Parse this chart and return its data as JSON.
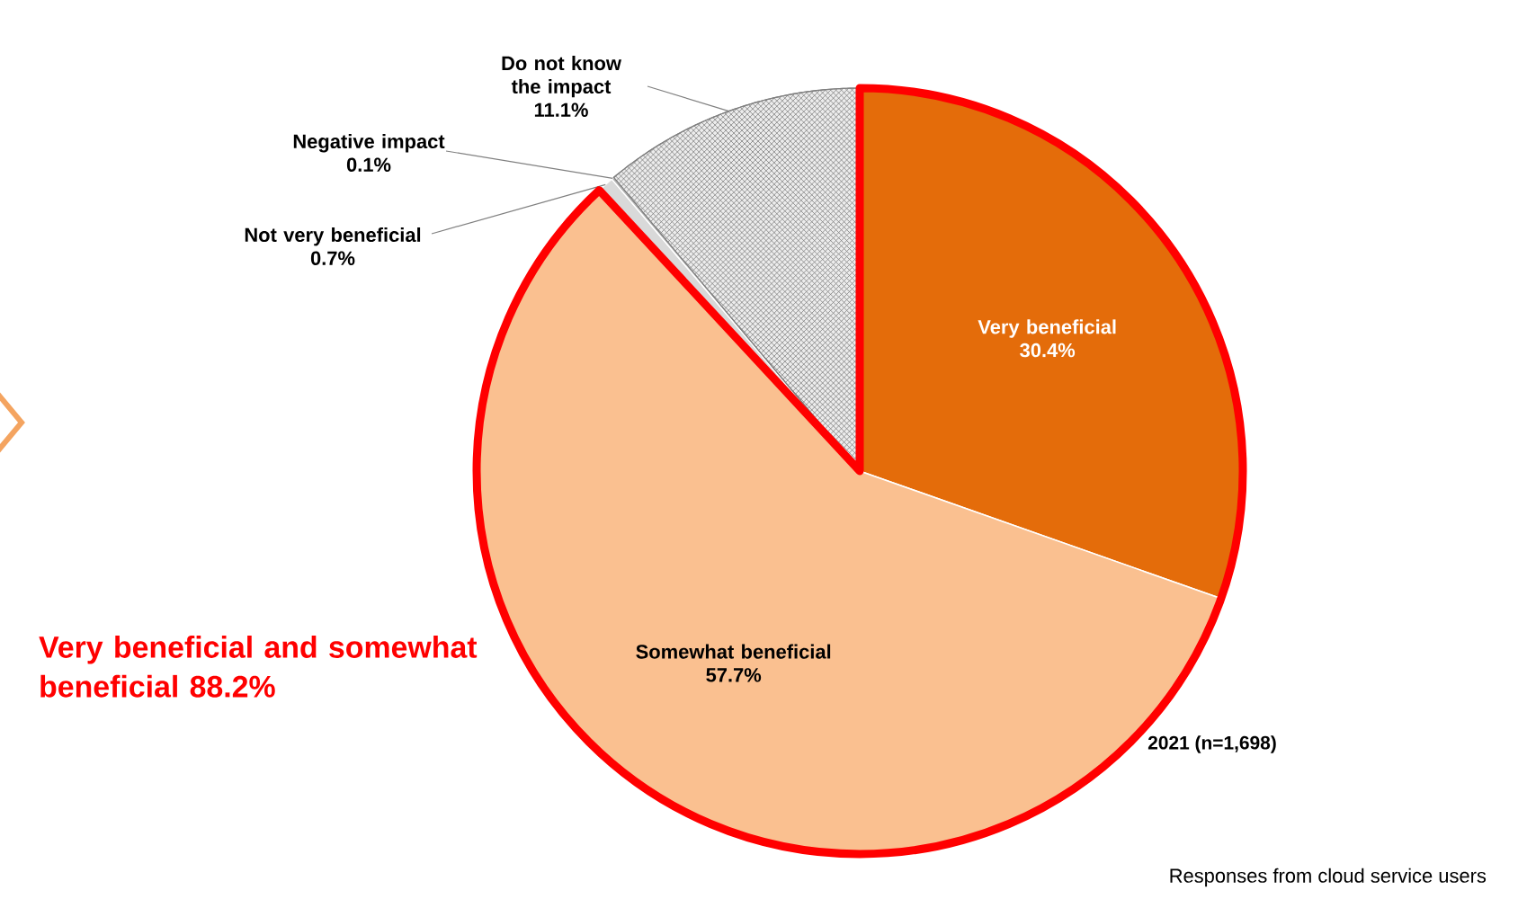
{
  "chart_data": {
    "type": "pie",
    "categories": [
      "Very beneficial",
      "Somewhat beneficial",
      "Not very beneficial",
      "Negative impact",
      "Do not know the impact"
    ],
    "values": [
      30.4,
      57.7,
      0.7,
      0.1,
      11.1
    ],
    "value_labels": [
      "30.4%",
      "57.7%",
      "0.7%",
      "0.1%",
      "11.1%"
    ],
    "colors": [
      "#e46c0a",
      "#fac090",
      "#d9d9d9",
      "#a6a6a6",
      "#ececec"
    ],
    "annotations": [
      "Very beneficial and somewhat beneficial 88.2%",
      "2021 (n=1,698)",
      "Responses from cloud service users"
    ]
  }
}
